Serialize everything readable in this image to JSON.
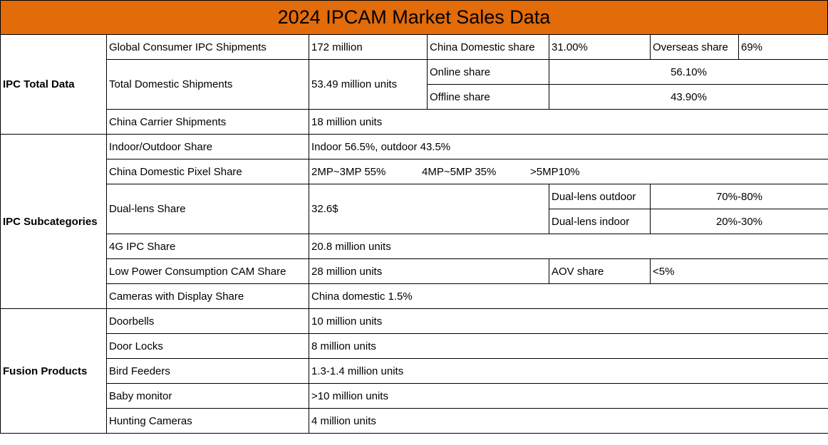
{
  "title": "2024 IPCAM Market Sales Data",
  "sections": {
    "total": {
      "label": "IPC Total Data",
      "global_shipments": {
        "label": "Global Consumer IPC Shipments",
        "value": "172 million"
      },
      "china_domestic_share": {
        "label": "China Domestic share",
        "value": "31.00%"
      },
      "overseas_share": {
        "label": "Overseas share",
        "value": "69%"
      },
      "total_domestic": {
        "label": "Total Domestic Shipments",
        "value": "53.49 million units"
      },
      "online_share": {
        "label": "Online share",
        "value": "56.10%"
      },
      "offline_share": {
        "label": "Offline share",
        "value": "43.90%"
      },
      "carrier": {
        "label": "China Carrier Shipments",
        "value": "18 million units"
      }
    },
    "subcategories": {
      "label": "IPC Subcategories",
      "indoor_outdoor": {
        "label": "Indoor/Outdoor Share",
        "value": "Indoor 56.5%, outdoor 43.5%"
      },
      "pixel_share": {
        "label": "China Domestic Pixel Share",
        "values": [
          "2MP~3MP 55%",
          "4MP~5MP 35%",
          ">5MP10%"
        ]
      },
      "dual_lens": {
        "label": "Dual-lens Share",
        "value": "32.6$",
        "outdoor": {
          "label": "Dual-lens outdoor",
          "value": "70%-80%"
        },
        "indoor": {
          "label": "Dual-lens indoor",
          "value": "20%-30%"
        }
      },
      "ipc_4g": {
        "label": "4G IPC Share",
        "value": "20.8 million units"
      },
      "low_power": {
        "label": "Low Power Consumption CAM Share",
        "value": "28 million units",
        "aov": {
          "label": "AOV share",
          "value": "<5%"
        }
      },
      "display": {
        "label": "Cameras with Display Share",
        "value": "China domestic 1.5%"
      }
    },
    "fusion": {
      "label": "Fusion Products",
      "items": [
        {
          "label": "Doorbells",
          "value": "10 million units"
        },
        {
          "label": "Door Locks",
          "value": "8 million units"
        },
        {
          "label": "Bird Feeders",
          "value": "1.3-1.4 million units"
        },
        {
          "label": "Baby monitor",
          "value": ">10 million units"
        },
        {
          "label": "Hunting Cameras",
          "value": "4 million units"
        }
      ]
    }
  },
  "colors": {
    "title_bg": "#e26b0a",
    "border": "#000000"
  }
}
